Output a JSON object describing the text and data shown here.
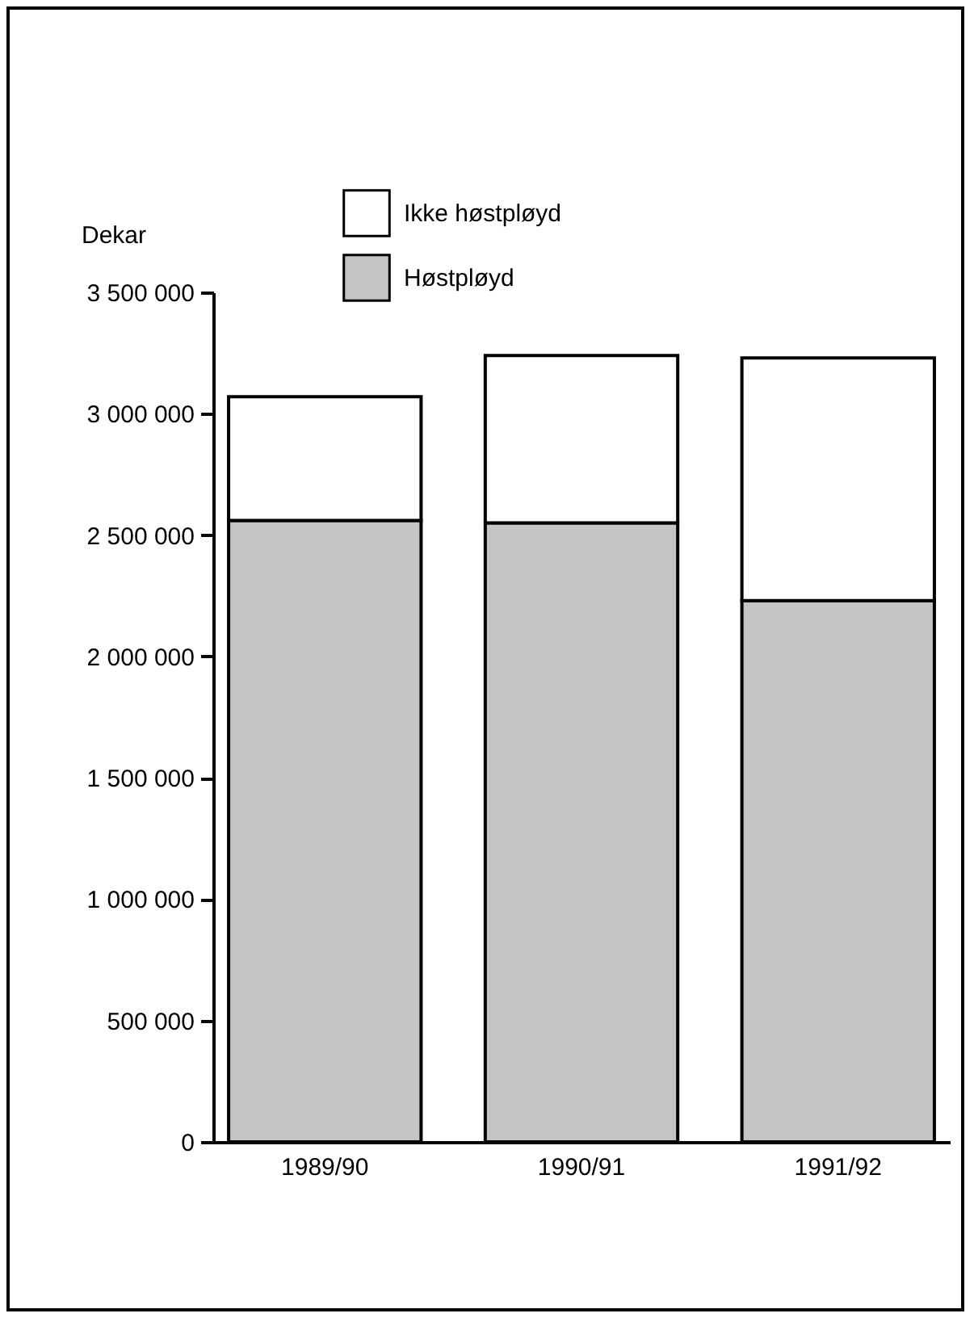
{
  "chart_data": {
    "type": "bar",
    "stacked": true,
    "ylabel": "Dekar",
    "categories": [
      "1989/90",
      "1990/91",
      "1991/92"
    ],
    "series": [
      {
        "name": "Høstpløyd",
        "color": "#c4c4c4",
        "values": [
          2560000,
          2550000,
          2230000
        ]
      },
      {
        "name": "Ikke høstpløyd",
        "color": "#ffffff",
        "values": [
          510000,
          690000,
          1000000
        ]
      }
    ],
    "ylim": [
      0,
      3500000
    ],
    "yticks": [
      {
        "value": 0,
        "label": "0"
      },
      {
        "value": 500000,
        "label": "500 000"
      },
      {
        "value": 1000000,
        "label": "1 000 000"
      },
      {
        "value": 1500000,
        "label": "1 500 000"
      },
      {
        "value": 2000000,
        "label": "2 000 000"
      },
      {
        "value": 2500000,
        "label": "2 500 000"
      },
      {
        "value": 3000000,
        "label": "3 000 000"
      },
      {
        "value": 3500000,
        "label": "3 500 000"
      }
    ],
    "grid": false,
    "legend": "top"
  }
}
